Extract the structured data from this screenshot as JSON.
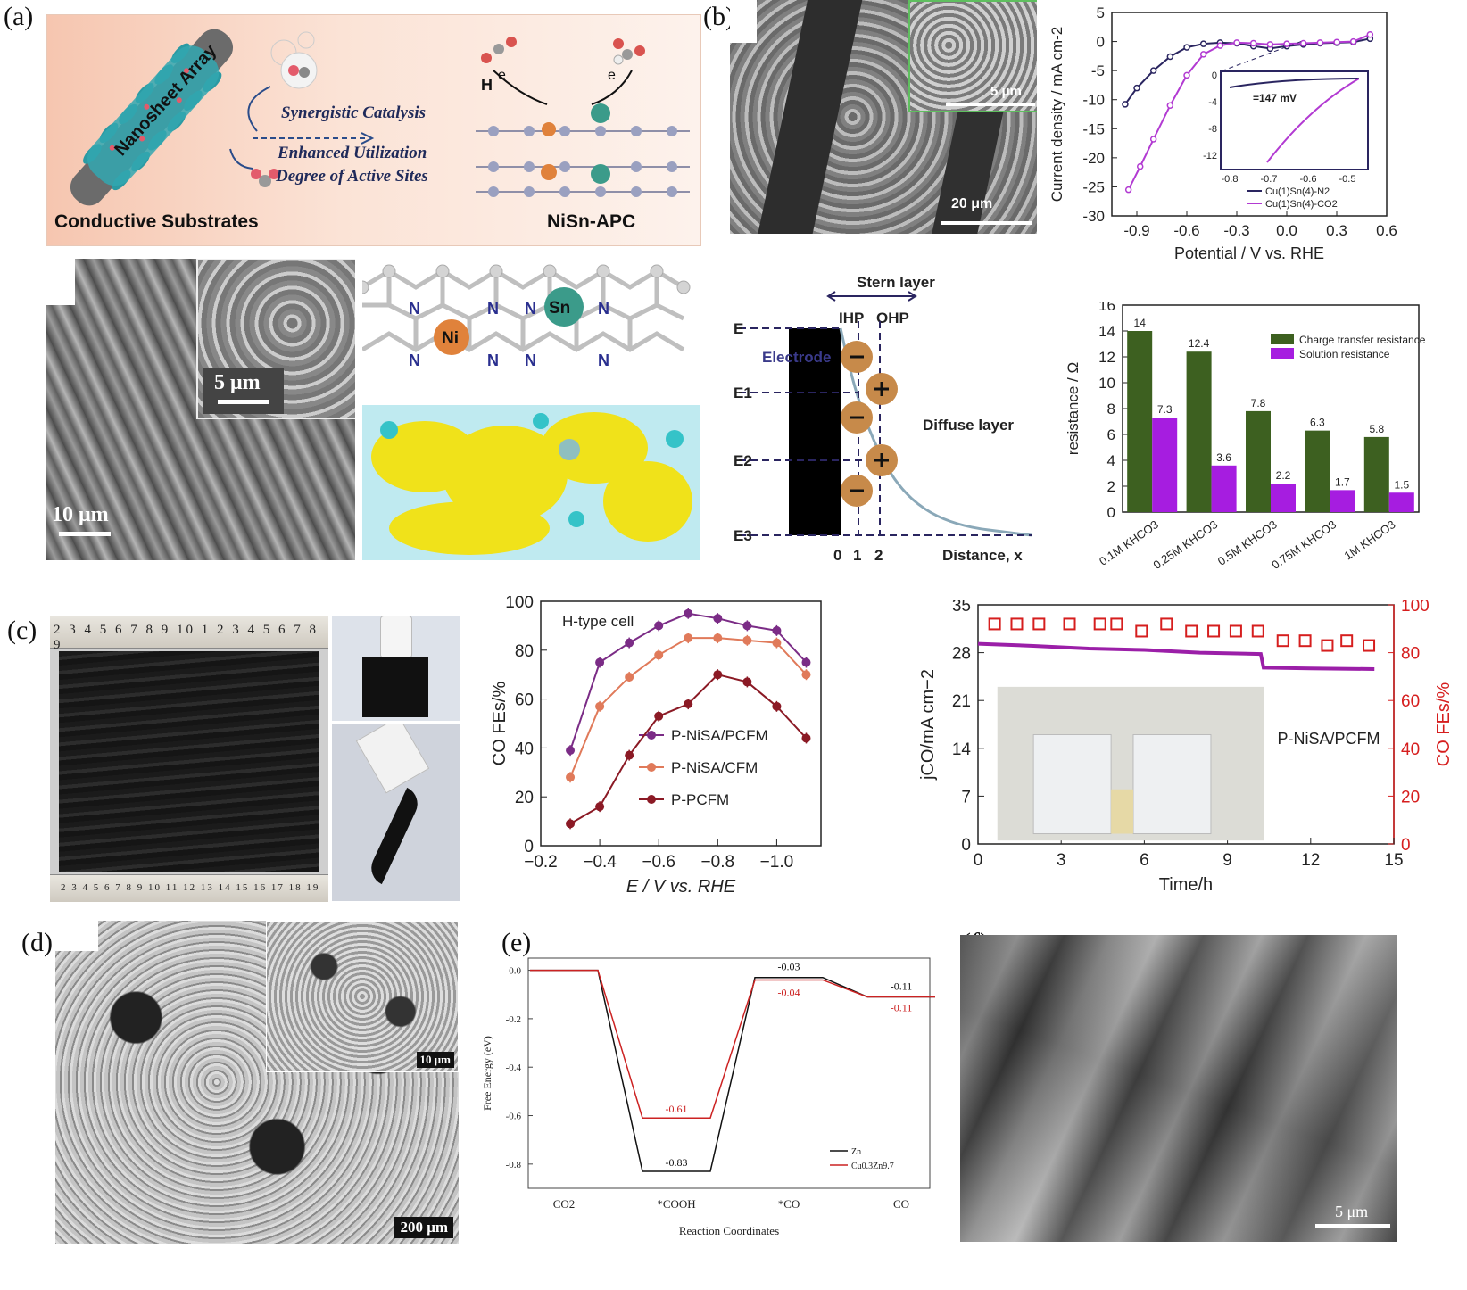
{
  "panels": {
    "a": {
      "label": "(a)",
      "scheme": {
        "array_label": "Nanosheet Array",
        "line1": "Synergistic Catalysis",
        "line2": "Enhanced Utilization",
        "line3": "Degree of Active Sites",
        "substrate_label": "Conductive Substrates",
        "catalyst_label": "NiSn-APC",
        "proton": "H",
        "electron": "e"
      },
      "sem_scale": "10 μm",
      "sem_inset_scale": "5 μm",
      "atoms": {
        "ni": "Ni",
        "sn": "Sn",
        "n": "N"
      }
    },
    "b": {
      "label": "(b)",
      "sem_scale": "20   μm",
      "sem_inset_scale": "5   μm",
      "stern": {
        "stern_layer": "Stern layer",
        "ihp": "IHP",
        "ohp": "OHP",
        "electrode": "Electrode",
        "diffuse": "Diffuse layer",
        "e_labels": [
          "E",
          "E1",
          "E2",
          "E3"
        ],
        "x_ticks": [
          "0",
          "1",
          "2"
        ],
        "x_label": "Distance, x"
      }
    },
    "c": {
      "label": "(c)",
      "ruler_top": "2 3 4 5 6 7 8 9 10 1 2 3 4 5 6 7 8 9",
      "ruler_bottom": "2 3 4 5 6 7 8 9 10 11 12 13 14 15 16 17 18 19"
    },
    "d": {
      "label": "(d)",
      "sem_scale": "200 μm",
      "sem_inset_scale": "10 μm"
    },
    "e": {
      "label": "(e)"
    },
    "f": {
      "label": "(f)",
      "sem_scale": "5 μm"
    }
  },
  "chart_data": [
    {
      "id": "lsv",
      "type": "line",
      "xlabel": "Potential / V vs. RHE",
      "ylabel": "Current density / mA cm-2",
      "xlim": [
        -1.05,
        0.6
      ],
      "ylim": [
        -30,
        5
      ],
      "xticks": [
        "-0.9",
        "-0.6",
        "-0.3",
        "0.0",
        "0.3",
        "0.6"
      ],
      "yticks": [
        "5",
        "0",
        "-5",
        "-10",
        "-15",
        "-20",
        "-25",
        "-30"
      ],
      "series": [
        {
          "name": "Cu(1)Sn(4)-N2",
          "color": "#2a2560",
          "x": [
            -0.97,
            -0.9,
            -0.8,
            -0.7,
            -0.6,
            -0.5,
            -0.4,
            -0.3,
            -0.2,
            -0.1,
            0.0,
            0.1,
            0.2,
            0.3,
            0.4,
            0.5
          ],
          "y": [
            -10.8,
            -8.0,
            -5.0,
            -2.6,
            -1.0,
            -0.4,
            -0.2,
            -0.3,
            -0.8,
            -1.2,
            -0.8,
            -0.5,
            -0.3,
            -0.2,
            -0.1,
            0.5
          ]
        },
        {
          "name": "Cu(1)Sn(4)-CO2",
          "color": "#b23ad2",
          "x": [
            -0.95,
            -0.88,
            -0.8,
            -0.7,
            -0.6,
            -0.5,
            -0.4,
            -0.3,
            -0.2,
            -0.1,
            0.0,
            0.1,
            0.2,
            0.3,
            0.4,
            0.5
          ],
          "y": [
            -25.5,
            -21.5,
            -16.8,
            -11.0,
            -5.8,
            -2.2,
            -0.7,
            -0.2,
            -0.3,
            -0.5,
            -0.4,
            -0.3,
            -0.2,
            -0.1,
            0.0,
            1.2
          ]
        }
      ],
      "inset": {
        "xticks": [
          "-0.8",
          "-0.7",
          "-0.6",
          "-0.5"
        ],
        "yticks": [
          "0",
          "-4",
          "-8",
          "-12"
        ],
        "annotation": "=147 mV"
      }
    },
    {
      "id": "resistance",
      "type": "bar",
      "ylabel": "resistance / Ω",
      "ylim": [
        0,
        16
      ],
      "yticks": [
        "0",
        "2",
        "4",
        "6",
        "8",
        "10",
        "12",
        "14",
        "16"
      ],
      "categories": [
        "0.1M KHCO3",
        "0.25M KHCO3",
        "0.5M KHCO3",
        "0.75M KHCO3",
        "1M KHCO3"
      ],
      "series": [
        {
          "name": "Charge transfer resistance",
          "color": "#3d6020",
          "values": [
            14,
            12.4,
            7.8,
            6.3,
            5.8
          ],
          "labels": [
            "14",
            "12.4",
            "7.8",
            "6.3",
            "5.8"
          ]
        },
        {
          "name": "Solution resistance",
          "color": "#a61de0",
          "values": [
            7.3,
            3.6,
            2.2,
            1.7,
            1.5
          ],
          "labels": [
            "7.3",
            "3.6",
            "2.2",
            "1.7",
            "1.5"
          ]
        }
      ]
    },
    {
      "id": "fe",
      "type": "line",
      "title": "H-type cell",
      "xlabel": "E / V vs. RHE",
      "ylabel": "CO FEs/%",
      "xlim": [
        -0.2,
        -1.15
      ],
      "ylim": [
        0,
        100
      ],
      "xticks": [
        "−0.2",
        "−0.4",
        "−0.6",
        "−0.8",
        "−1.0"
      ],
      "yticks": [
        "0",
        "20",
        "40",
        "60",
        "80",
        "100"
      ],
      "x": [
        -0.3,
        -0.4,
        -0.5,
        -0.6,
        -0.7,
        -0.8,
        -0.9,
        -1.0,
        -1.1
      ],
      "series": [
        {
          "name": "P-NiSA/PCFM",
          "color": "#7b2c86",
          "values": [
            39,
            75,
            83,
            90,
            95,
            93,
            90,
            88,
            75
          ]
        },
        {
          "name": "P-NiSA/CFM",
          "color": "#e07a5a",
          "values": [
            28,
            57,
            69,
            78,
            85,
            85,
            84,
            83,
            70
          ]
        },
        {
          "name": "P-PCFM",
          "color": "#8b1a25",
          "values": [
            9,
            16,
            37,
            53,
            58,
            70,
            67,
            57,
            44
          ]
        }
      ]
    },
    {
      "id": "stability",
      "type": "scatter",
      "xlabel": "Time/h",
      "ylabel_left": "jCO/mA cm−2",
      "ylabel_right": "CO FEs/%",
      "legend": "P-NiSA/PCFM",
      "xlim": [
        0,
        15
      ],
      "ylim_left": [
        0,
        35
      ],
      "ylim_right": [
        0,
        100
      ],
      "xticks": [
        "0",
        "3",
        "6",
        "9",
        "12",
        "15"
      ],
      "yticks_left": [
        "0",
        "7",
        "14",
        "21",
        "28",
        "35"
      ],
      "yticks_right": [
        "0",
        "20",
        "40",
        "60",
        "80",
        "100"
      ],
      "fe_x": [
        0.6,
        1.4,
        2.2,
        3.3,
        4.4,
        5.0,
        5.9,
        6.8,
        7.7,
        8.5,
        9.3,
        10.1,
        11.0,
        11.8,
        12.6,
        13.3,
        14.1
      ],
      "fe_y": [
        92,
        92,
        92,
        92,
        92,
        92,
        89,
        92,
        89,
        89,
        89,
        89,
        85,
        85,
        83,
        85,
        83
      ],
      "j_x": [
        0,
        2,
        4,
        6,
        8,
        10.2,
        10.3,
        12,
        14.3
      ],
      "j_y": [
        29.3,
        29.0,
        28.6,
        28.4,
        28.0,
        27.8,
        25.8,
        25.7,
        25.6
      ]
    },
    {
      "id": "energy",
      "type": "line",
      "xlabel": "Reaction Coordinates",
      "ylabel": "Free Energy (eV)",
      "categories": [
        "CO2",
        "*COOH",
        "*CO",
        "CO"
      ],
      "ylim": [
        -0.9,
        0.05
      ],
      "yticks": [
        "0.0",
        "-0.2",
        "-0.4",
        "-0.6",
        "-0.8"
      ],
      "series": [
        {
          "name": "Zn",
          "color": "#111111",
          "values": [
            0,
            -0.83,
            -0.03,
            -0.11
          ],
          "labels": [
            "",
            "-0.83",
            "-0.03",
            "-0.11"
          ]
        },
        {
          "name": "Cu0.3Zn9.7",
          "color": "#cc2222",
          "values": [
            0,
            -0.61,
            -0.04,
            -0.11
          ],
          "labels": [
            "",
            "-0.61",
            "-0.04",
            "-0.11"
          ]
        }
      ]
    }
  ]
}
